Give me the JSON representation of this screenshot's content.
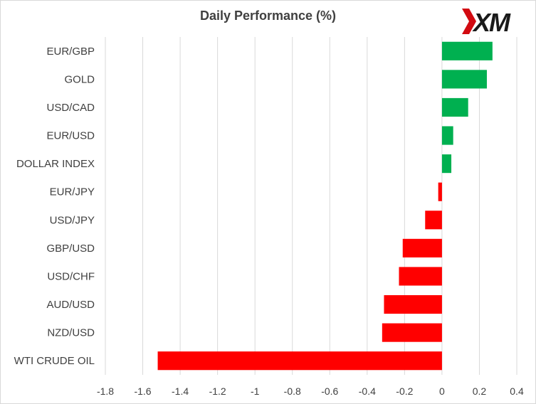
{
  "chart_data": {
    "type": "bar",
    "orientation": "horizontal",
    "title": "Daily Performance (%)",
    "categories": [
      "EUR/GBP",
      "GOLD",
      "USD/CAD",
      "EUR/USD",
      "DOLLAR INDEX",
      "EUR/JPY",
      "USD/JPY",
      "GBP/USD",
      "USD/CHF",
      "AUD/USD",
      "NZD/USD",
      "WTI CRUDE OIL"
    ],
    "values": [
      0.27,
      0.24,
      0.14,
      0.06,
      0.05,
      -0.02,
      -0.09,
      -0.21,
      -0.23,
      -0.31,
      -0.32,
      -1.52
    ],
    "xlim": [
      -1.8,
      0.4
    ],
    "xticks": [
      -1.8,
      -1.6,
      -1.4,
      -1.2,
      -1,
      -0.8,
      -0.6,
      -0.4,
      -0.2,
      0,
      0.2,
      0.4
    ],
    "grid": "vertical",
    "legend": "none",
    "colors": {
      "positive": "#00b050",
      "negative": "#ff0000",
      "grid": "#d9d9d9",
      "text": "#404040"
    }
  },
  "logo": {
    "text": "XM",
    "mark_color": "#d20a11",
    "text_color": "#1a1a1a"
  }
}
